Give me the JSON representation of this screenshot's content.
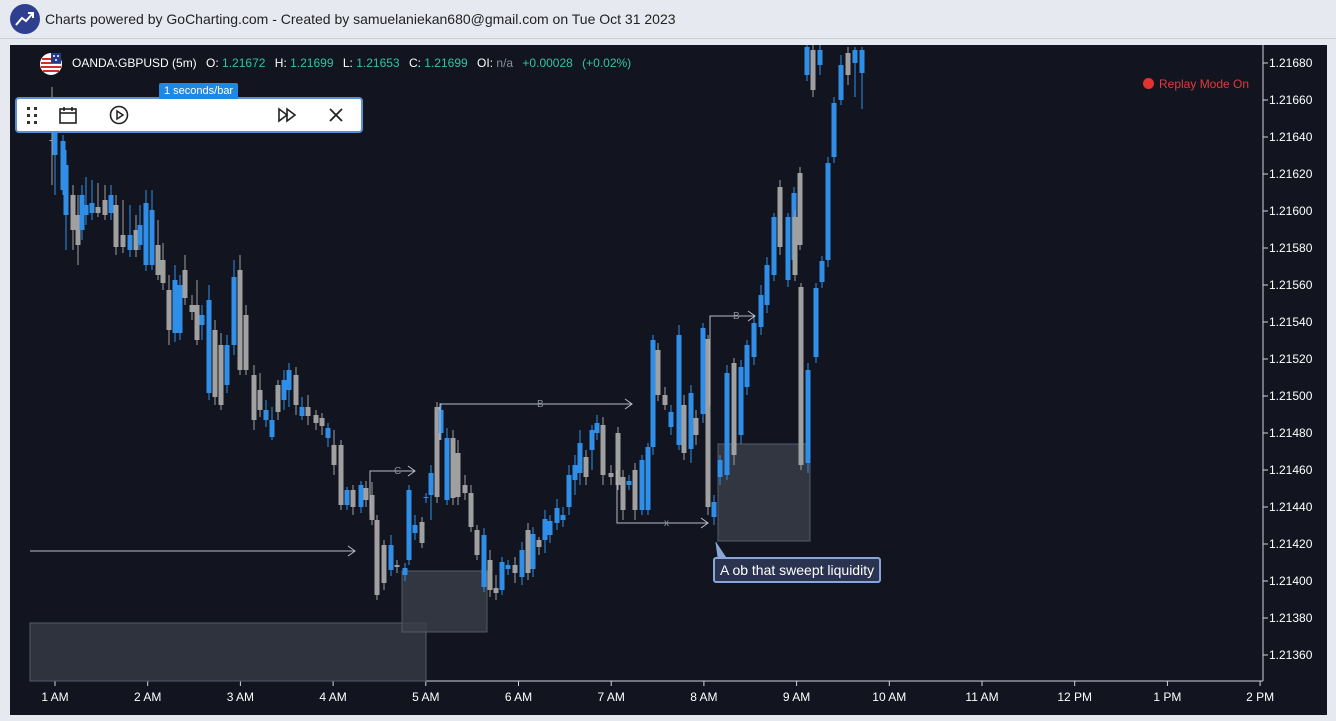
{
  "header": {
    "logo_icon": "trend-chart-icon",
    "credit_text": "Charts powered by GoCharting.com - Created by samuelaniekan680@gmail.com on Tue Oct 31 2023"
  },
  "chart": {
    "symbol": "OANDA:GBPUSD (5m)",
    "open_label": "O:",
    "open": "1.21672",
    "high_label": "H:",
    "high": "1.21699",
    "low_label": "L:",
    "low": "1.21653",
    "close_label": "C:",
    "close": "1.21699",
    "oi_label": "OI:",
    "oi": "n/a",
    "change": "+0.00028",
    "change_pct": "(+0.02%)",
    "replay_status": "Replay Mode On",
    "annotation": "A ob that sweept liquidity",
    "drawing_labels": [
      "C",
      "B",
      "x",
      "B"
    ],
    "colors": {
      "bull": "#2f8ee8",
      "bear": "#a0a0a0",
      "background": "#12151f",
      "replay": "#e43232"
    }
  },
  "replay_toolbar": {
    "speed_label": "1 seconds/bar",
    "icons": [
      "drag-handle-icon",
      "calendar-icon",
      "play-icon",
      "fast-forward-icon",
      "close-icon"
    ]
  },
  "y_axis": [
    "1.21680",
    "1.21660",
    "1.21640",
    "1.21620",
    "1.21600",
    "1.21580",
    "1.21560",
    "1.21540",
    "1.21520",
    "1.21500",
    "1.21480",
    "1.21460",
    "1.21440",
    "1.21420",
    "1.21400",
    "1.21380",
    "1.21360"
  ],
  "x_axis": [
    "1 AM",
    "2 AM",
    "3 AM",
    "4 AM",
    "5 AM",
    "6 AM",
    "7 AM",
    "8 AM",
    "9 AM",
    "10 AM",
    "11 AM",
    "12 PM",
    "1 PM",
    "2 PM"
  ]
}
